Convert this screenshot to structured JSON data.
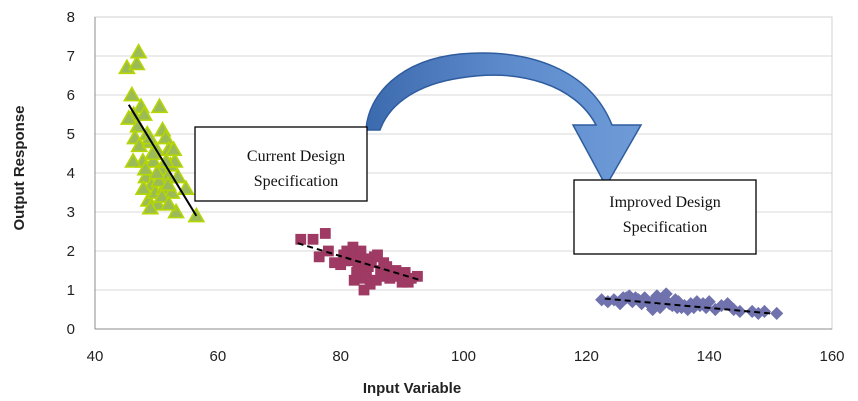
{
  "chart_data": {
    "type": "scatter",
    "title": "",
    "xlabel": "Input Variable",
    "ylabel": "Output Response",
    "xlim": [
      40,
      160
    ],
    "ylim": [
      0,
      8
    ],
    "x_ticks": [
      "40",
      "60",
      "80",
      "100",
      "120",
      "140",
      "160"
    ],
    "y_ticks": [
      "0",
      "1",
      "2",
      "3",
      "4",
      "5",
      "6",
      "7",
      "8"
    ],
    "grid": true,
    "legend": "none",
    "series": [
      {
        "marker": "triangle",
        "color": "#9BBB59",
        "edge_color": "#B5D600",
        "points": [
          [
            45.2,
            6.7
          ],
          [
            46.8,
            6.8
          ],
          [
            47.1,
            7.1
          ],
          [
            46.0,
            6.0
          ],
          [
            47.5,
            5.7
          ],
          [
            46.3,
            5.5
          ],
          [
            45.5,
            5.4
          ],
          [
            47.0,
            5.2
          ],
          [
            48.0,
            5.5
          ],
          [
            46.5,
            4.9
          ],
          [
            47.2,
            4.7
          ],
          [
            48.5,
            5.0
          ],
          [
            49.0,
            4.8
          ],
          [
            47.8,
            4.3
          ],
          [
            46.2,
            4.3
          ],
          [
            48.3,
            3.9
          ],
          [
            49.5,
            4.3
          ],
          [
            50.0,
            4.6
          ],
          [
            50.5,
            5.7
          ],
          [
            51.0,
            5.1
          ],
          [
            51.5,
            4.9
          ],
          [
            52.0,
            4.6
          ],
          [
            52.3,
            4.2
          ],
          [
            53.0,
            4.3
          ],
          [
            50.8,
            4.1
          ],
          [
            49.2,
            3.7
          ],
          [
            48.7,
            3.3
          ],
          [
            49.8,
            3.5
          ],
          [
            50.2,
            3.2
          ],
          [
            51.2,
            3.6
          ],
          [
            51.8,
            3.9
          ],
          [
            52.5,
            3.5
          ],
          [
            53.2,
            3.0
          ],
          [
            54.8,
            3.6
          ],
          [
            56.5,
            2.9
          ],
          [
            49.0,
            3.1
          ],
          [
            50.9,
            3.4
          ],
          [
            52.0,
            3.2
          ],
          [
            48.2,
            4.1
          ],
          [
            47.9,
            3.6
          ],
          [
            49.4,
            4.5
          ],
          [
            51.6,
            4.3
          ],
          [
            50.4,
            3.8
          ],
          [
            51.9,
            3.7
          ],
          [
            53.5,
            3.9
          ],
          [
            52.8,
            4.6
          ],
          [
            48.9,
            4.9
          ],
          [
            50.1,
            4.0
          ]
        ],
        "trend": {
          "style": "solid",
          "x": [
            45.5,
            56.5
          ],
          "y": [
            5.75,
            2.9
          ]
        }
      },
      {
        "marker": "square",
        "color": "#9E3A63",
        "edge_color": "#9E3A63",
        "points": [
          [
            73.5,
            2.3
          ],
          [
            75.5,
            2.3
          ],
          [
            77.5,
            2.45
          ],
          [
            76.5,
            1.85
          ],
          [
            78.0,
            2.0
          ],
          [
            79.0,
            1.7
          ],
          [
            80.0,
            1.65
          ],
          [
            80.5,
            1.9
          ],
          [
            81.0,
            2.0
          ],
          [
            81.5,
            1.75
          ],
          [
            82.0,
            2.1
          ],
          [
            82.5,
            1.9
          ],
          [
            82.8,
            1.6
          ],
          [
            83.0,
            1.5
          ],
          [
            83.3,
            2.0
          ],
          [
            83.5,
            1.3
          ],
          [
            83.8,
            1.0
          ],
          [
            84.0,
            1.8
          ],
          [
            84.2,
            1.4
          ],
          [
            84.5,
            1.6
          ],
          [
            85.0,
            1.7
          ],
          [
            85.5,
            1.85
          ],
          [
            86.0,
            1.9
          ],
          [
            86.5,
            1.5
          ],
          [
            87.0,
            1.7
          ],
          [
            87.5,
            1.6
          ],
          [
            88.0,
            1.3
          ],
          [
            88.5,
            1.4
          ],
          [
            89.0,
            1.5
          ],
          [
            89.5,
            1.35
          ],
          [
            90.0,
            1.2
          ],
          [
            90.5,
            1.45
          ],
          [
            91.0,
            1.2
          ],
          [
            91.5,
            1.3
          ],
          [
            92.5,
            1.35
          ],
          [
            82.2,
            1.25
          ],
          [
            84.8,
            1.15
          ],
          [
            85.8,
            1.25
          ],
          [
            86.8,
            1.35
          ],
          [
            80.8,
            1.75
          ],
          [
            83.6,
            1.75
          ],
          [
            82.6,
            1.45
          ]
        ],
        "trend": {
          "style": "dashed",
          "x": [
            73.0,
            93.0
          ],
          "y": [
            2.2,
            1.25
          ]
        }
      },
      {
        "marker": "diamond",
        "color": "#7072AE",
        "edge_color": "#7072AE",
        "points": [
          [
            122.5,
            0.75
          ],
          [
            123.5,
            0.7
          ],
          [
            124.5,
            0.75
          ],
          [
            125.5,
            0.65
          ],
          [
            126.5,
            0.8
          ],
          [
            127.0,
            0.85
          ],
          [
            127.5,
            0.7
          ],
          [
            128.0,
            0.8
          ],
          [
            128.5,
            0.75
          ],
          [
            129.0,
            0.65
          ],
          [
            129.5,
            0.8
          ],
          [
            130.0,
            0.7
          ],
          [
            130.5,
            0.6
          ],
          [
            131.0,
            0.75
          ],
          [
            131.5,
            0.85
          ],
          [
            132.0,
            0.55
          ],
          [
            132.5,
            0.7
          ],
          [
            133.0,
            0.9
          ],
          [
            133.5,
            0.65
          ],
          [
            134.0,
            0.6
          ],
          [
            134.5,
            0.75
          ],
          [
            135.0,
            0.7
          ],
          [
            135.5,
            0.55
          ],
          [
            136.0,
            0.6
          ],
          [
            136.5,
            0.5
          ],
          [
            137.0,
            0.65
          ],
          [
            137.5,
            0.55
          ],
          [
            138.0,
            0.7
          ],
          [
            138.5,
            0.6
          ],
          [
            139.0,
            0.65
          ],
          [
            139.5,
            0.55
          ],
          [
            140.0,
            0.7
          ],
          [
            141.0,
            0.5
          ],
          [
            142.0,
            0.6
          ],
          [
            143.0,
            0.65
          ],
          [
            144.0,
            0.5
          ],
          [
            145.0,
            0.45
          ],
          [
            147.0,
            0.45
          ],
          [
            148.0,
            0.4
          ],
          [
            149.0,
            0.45
          ],
          [
            151.0,
            0.4
          ],
          [
            126.0,
            0.8
          ],
          [
            130.8,
            0.5
          ],
          [
            134.8,
            0.55
          ]
        ],
        "trend": {
          "style": "dashed",
          "x": [
            123.0,
            150.0
          ],
          "y": [
            0.78,
            0.4
          ]
        }
      }
    ],
    "annotations": [
      {
        "lines": [
          "Current Design",
          "Specification"
        ]
      },
      {
        "lines": [
          "Improved Design",
          "Specification"
        ]
      }
    ],
    "arrow": {
      "color": "#4A78B8",
      "edge_color": "#2E5C9E"
    }
  }
}
